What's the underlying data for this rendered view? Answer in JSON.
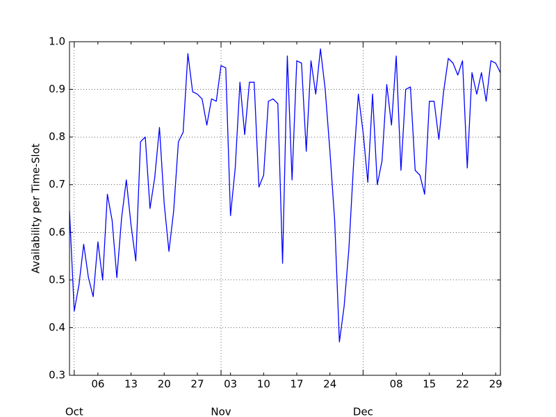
{
  "chart_data": {
    "type": "line",
    "y_label": "Availability per Time-Slot",
    "x": [
      "09-30",
      "10-01",
      "10-02",
      "10-03",
      "10-04",
      "10-05",
      "10-06",
      "10-07",
      "10-08",
      "10-09",
      "10-10",
      "10-11",
      "10-12",
      "10-13",
      "10-14",
      "10-15",
      "10-16",
      "10-17",
      "10-18",
      "10-19",
      "10-20",
      "10-21",
      "10-22",
      "10-23",
      "10-24",
      "10-25",
      "10-26",
      "10-27",
      "10-28",
      "10-29",
      "10-30",
      "10-31",
      "11-01",
      "11-02",
      "11-03",
      "11-04",
      "11-05",
      "11-06",
      "11-07",
      "11-08",
      "11-09",
      "11-10",
      "11-11",
      "11-12",
      "11-13",
      "11-14",
      "11-15",
      "11-16",
      "11-17",
      "11-18",
      "11-19",
      "11-20",
      "11-21",
      "11-22",
      "11-23",
      "11-24",
      "11-25",
      "11-26",
      "11-27",
      "11-28",
      "11-29",
      "11-30",
      "12-01",
      "12-02",
      "12-03",
      "12-04",
      "12-05",
      "12-06",
      "12-07",
      "12-08",
      "12-09",
      "12-10",
      "12-11",
      "12-12",
      "12-13",
      "12-14",
      "12-15",
      "12-16",
      "12-17",
      "12-18",
      "12-19",
      "12-20",
      "12-21",
      "12-22",
      "12-23",
      "12-24",
      "12-25",
      "12-26",
      "12-27",
      "12-28",
      "12-29",
      "12-30"
    ],
    "series": [
      {
        "color": "#0000ff",
        "values": [
          0.645,
          0.435,
          0.49,
          0.575,
          0.505,
          0.465,
          0.58,
          0.5,
          0.68,
          0.625,
          0.505,
          0.63,
          0.71,
          0.615,
          0.54,
          0.79,
          0.8,
          0.65,
          0.715,
          0.82,
          0.66,
          0.56,
          0.645,
          0.79,
          0.81,
          0.975,
          0.895,
          0.89,
          0.88,
          0.825,
          0.88,
          0.875,
          0.95,
          0.945,
          0.635,
          0.735,
          0.915,
          0.805,
          0.915,
          0.915,
          0.695,
          0.72,
          0.875,
          0.88,
          0.87,
          0.535,
          0.97,
          0.71,
          0.96,
          0.955,
          0.77,
          0.96,
          0.89,
          0.985,
          0.9,
          0.77,
          0.625,
          0.37,
          0.445,
          0.565,
          0.745,
          0.89,
          0.81,
          0.705,
          0.89,
          0.7,
          0.75,
          0.91,
          0.825,
          0.97,
          0.73,
          0.9,
          0.905,
          0.73,
          0.72,
          0.68,
          0.875,
          0.875,
          0.795,
          0.895,
          0.965,
          0.955,
          0.93,
          0.96,
          0.735,
          0.935,
          0.89,
          0.935,
          0.875,
          0.96,
          0.955,
          0.935
        ]
      }
    ],
    "xlim": [
      "09-30",
      "12-30"
    ],
    "xticks": [
      {
        "value": "10-06",
        "label": "06"
      },
      {
        "value": "10-13",
        "label": "13"
      },
      {
        "value": "10-20",
        "label": "20"
      },
      {
        "value": "10-27",
        "label": "27"
      },
      {
        "value": "11-03",
        "label": "03"
      },
      {
        "value": "11-10",
        "label": "10"
      },
      {
        "value": "11-17",
        "label": "17"
      },
      {
        "value": "11-24",
        "label": "24"
      },
      {
        "value": "12-08",
        "label": "08"
      },
      {
        "value": "12-15",
        "label": "15"
      },
      {
        "value": "12-22",
        "label": "22"
      },
      {
        "value": "12-29",
        "label": "29"
      }
    ],
    "month_ticks": [
      {
        "value": "10-01",
        "label": "Oct"
      },
      {
        "value": "11-01",
        "label": "Nov"
      },
      {
        "value": "12-01",
        "label": "Dec"
      }
    ],
    "ylim": [
      0.3,
      1.0
    ],
    "yticks": [
      0.3,
      0.4,
      0.5,
      0.6,
      0.7,
      0.8,
      0.9,
      {
        "value": 1.0,
        "label": "1.0"
      }
    ],
    "grid": true
  }
}
